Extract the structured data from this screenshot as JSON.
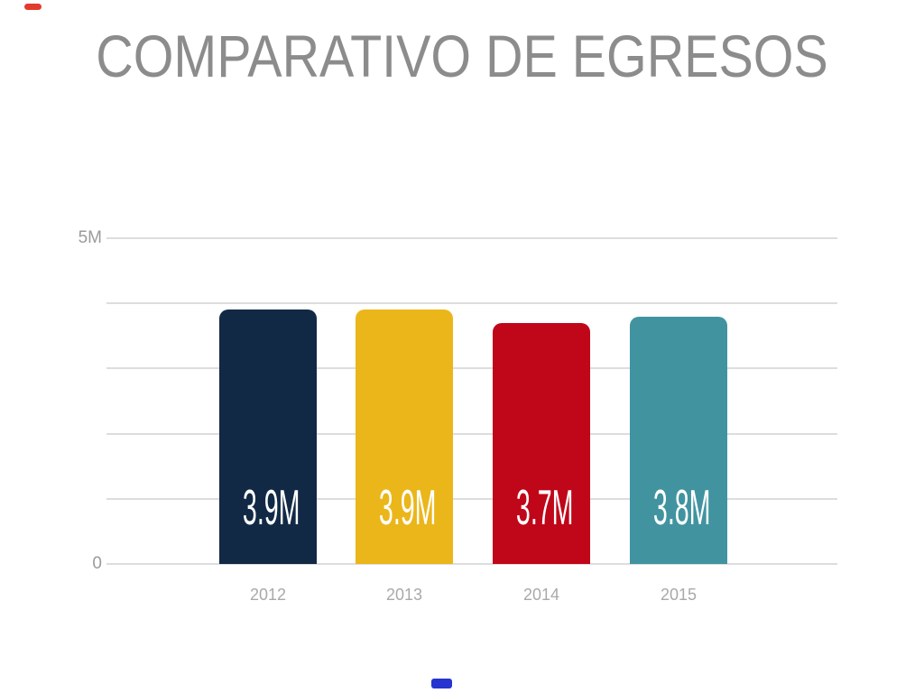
{
  "title": {
    "text": "COMPARATIVO DE EGRESOS",
    "color": "#8C8C8C"
  },
  "decor": {
    "top_left_mark_color": "#E23A2B",
    "bottom_center_mark_color": "#2634D0"
  },
  "chart_data": {
    "type": "bar",
    "title": "COMPARATIVO DE EGRESOS",
    "categories": [
      "2012",
      "2013",
      "2014",
      "2015"
    ],
    "values": [
      3900000,
      3900000,
      3700000,
      3800000
    ],
    "value_labels": [
      "3.9M",
      "3.9M",
      "3.7M",
      "3.8M"
    ],
    "bar_colors": [
      "#122945",
      "#EBB61A",
      "#C00619",
      "#4193A0"
    ],
    "xlabel": "",
    "ylabel": "",
    "ylim": [
      0,
      5000000
    ],
    "y_ticks": [
      {
        "value": 5000000,
        "label": "5M"
      },
      {
        "value": 0,
        "label": "0"
      }
    ],
    "gridline_values": [
      0,
      1000000,
      2000000,
      3000000,
      4000000,
      5000000
    ],
    "grid": true,
    "legend": false,
    "colors": {
      "grid_line": "#DDDDE0",
      "tick_label": "#9B9B9B",
      "category_label": "#A9A9A9",
      "value_label": "#FFFFFF"
    }
  }
}
